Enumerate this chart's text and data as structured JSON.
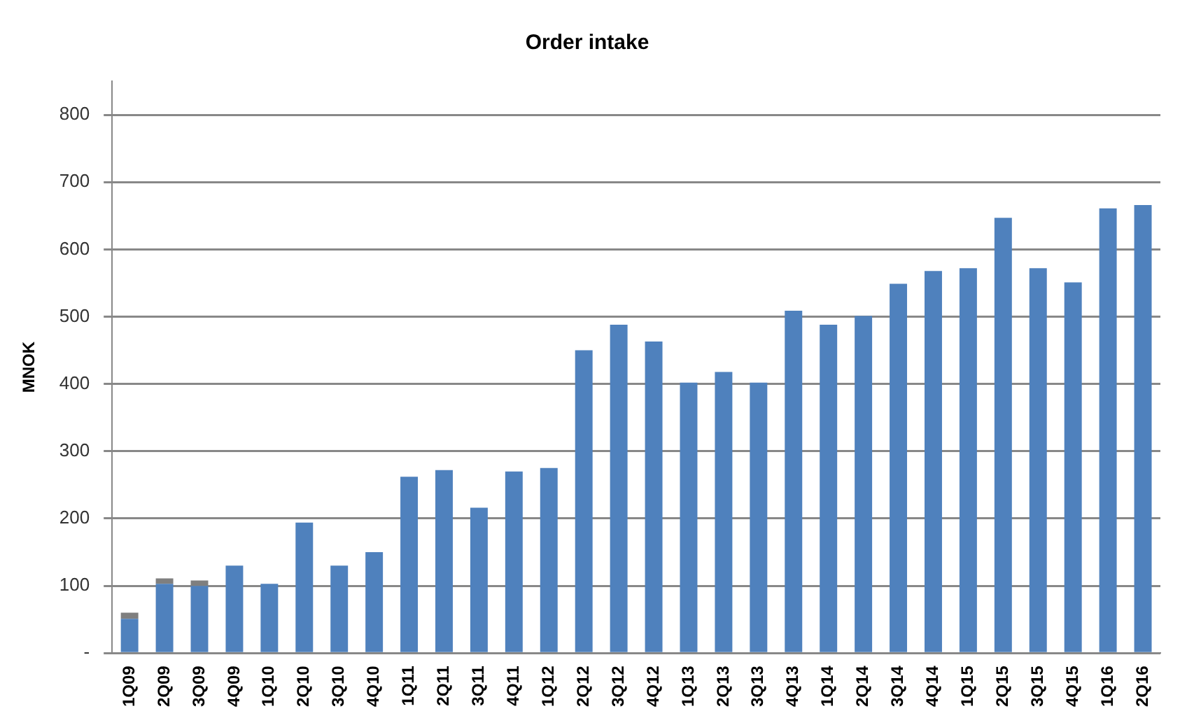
{
  "chart_data": {
    "type": "bar",
    "title": "Order intake",
    "ylabel": "MNOK",
    "categories": [
      "1Q09",
      "2Q09",
      "3Q09",
      "4Q09",
      "1Q10",
      "2Q10",
      "3Q10",
      "4Q10",
      "1Q11",
      "2Q11",
      "3Q11",
      "4Q11",
      "1Q12",
      "2Q12",
      "3Q12",
      "4Q12",
      "1Q13",
      "2Q13",
      "3Q13",
      "4Q13",
      "1Q14",
      "2Q14",
      "3Q14",
      "4Q14",
      "1Q15",
      "2Q15",
      "3Q15",
      "4Q15",
      "1Q16",
      "2Q16"
    ],
    "stacked": true,
    "series": [
      {
        "color": "#4f81bd",
        "values": [
          51,
          103,
          100,
          130,
          103,
          194,
          130,
          150,
          262,
          272,
          216,
          270,
          275,
          450,
          488,
          463,
          402,
          418,
          402,
          509,
          488,
          501,
          549,
          568,
          572,
          647,
          572,
          551,
          661,
          666
        ]
      },
      {
        "color": "#7f7f7f",
        "values": [
          9,
          8,
          8,
          null,
          null,
          null,
          null,
          null,
          null,
          null,
          null,
          null,
          null,
          null,
          null,
          null,
          null,
          null,
          null,
          null,
          null,
          null,
          null,
          null,
          null,
          null,
          null,
          null,
          null,
          null
        ]
      }
    ],
    "ylim": [
      0,
      850
    ],
    "yticks": [
      {
        "value": 0,
        "label": "-"
      },
      100,
      200,
      300,
      400,
      500,
      600,
      700,
      800
    ],
    "grid": "y",
    "legend": false
  }
}
